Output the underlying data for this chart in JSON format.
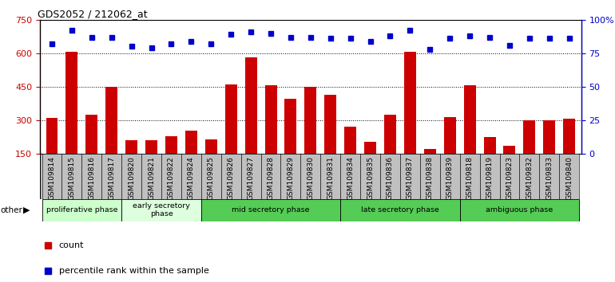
{
  "title": "GDS2052 / 212062_at",
  "samples": [
    "GSM109814",
    "GSM109815",
    "GSM109816",
    "GSM109817",
    "GSM109820",
    "GSM109821",
    "GSM109822",
    "GSM109824",
    "GSM109825",
    "GSM109826",
    "GSM109827",
    "GSM109828",
    "GSM109829",
    "GSM109830",
    "GSM109831",
    "GSM109834",
    "GSM109835",
    "GSM109836",
    "GSM109837",
    "GSM109838",
    "GSM109839",
    "GSM109818",
    "GSM109819",
    "GSM109823",
    "GSM109832",
    "GSM109833",
    "GSM109840"
  ],
  "counts": [
    310,
    605,
    325,
    450,
    210,
    210,
    230,
    255,
    215,
    460,
    580,
    455,
    395,
    450,
    415,
    270,
    205,
    325,
    605,
    170,
    315,
    455,
    225,
    185,
    300,
    300,
    305
  ],
  "percentile": [
    82,
    92,
    87,
    87,
    80,
    79,
    82,
    84,
    82,
    89,
    91,
    90,
    87,
    87,
    86,
    86,
    84,
    88,
    92,
    78,
    86,
    88,
    87,
    81,
    86,
    86,
    86
  ],
  "phases": [
    {
      "label": "proliferative phase",
      "start": 0,
      "end": 3,
      "color": "#ccffcc"
    },
    {
      "label": "early secretory\nphase",
      "start": 4,
      "end": 7,
      "color": "#ddffdd"
    },
    {
      "label": "mid secretory phase",
      "start": 8,
      "end": 14,
      "color": "#55cc55"
    },
    {
      "label": "late secretory phase",
      "start": 15,
      "end": 20,
      "color": "#55cc55"
    },
    {
      "label": "ambiguous phase",
      "start": 21,
      "end": 26,
      "color": "#55cc55"
    }
  ],
  "ylim_left": [
    150,
    750
  ],
  "ylim_right": [
    0,
    100
  ],
  "yticks_left": [
    150,
    300,
    450,
    600,
    750
  ],
  "yticks_right": [
    0,
    25,
    50,
    75,
    100
  ],
  "bar_color": "#cc0000",
  "dot_color": "#0000cc",
  "tick_area_bg": "#c0c0c0"
}
